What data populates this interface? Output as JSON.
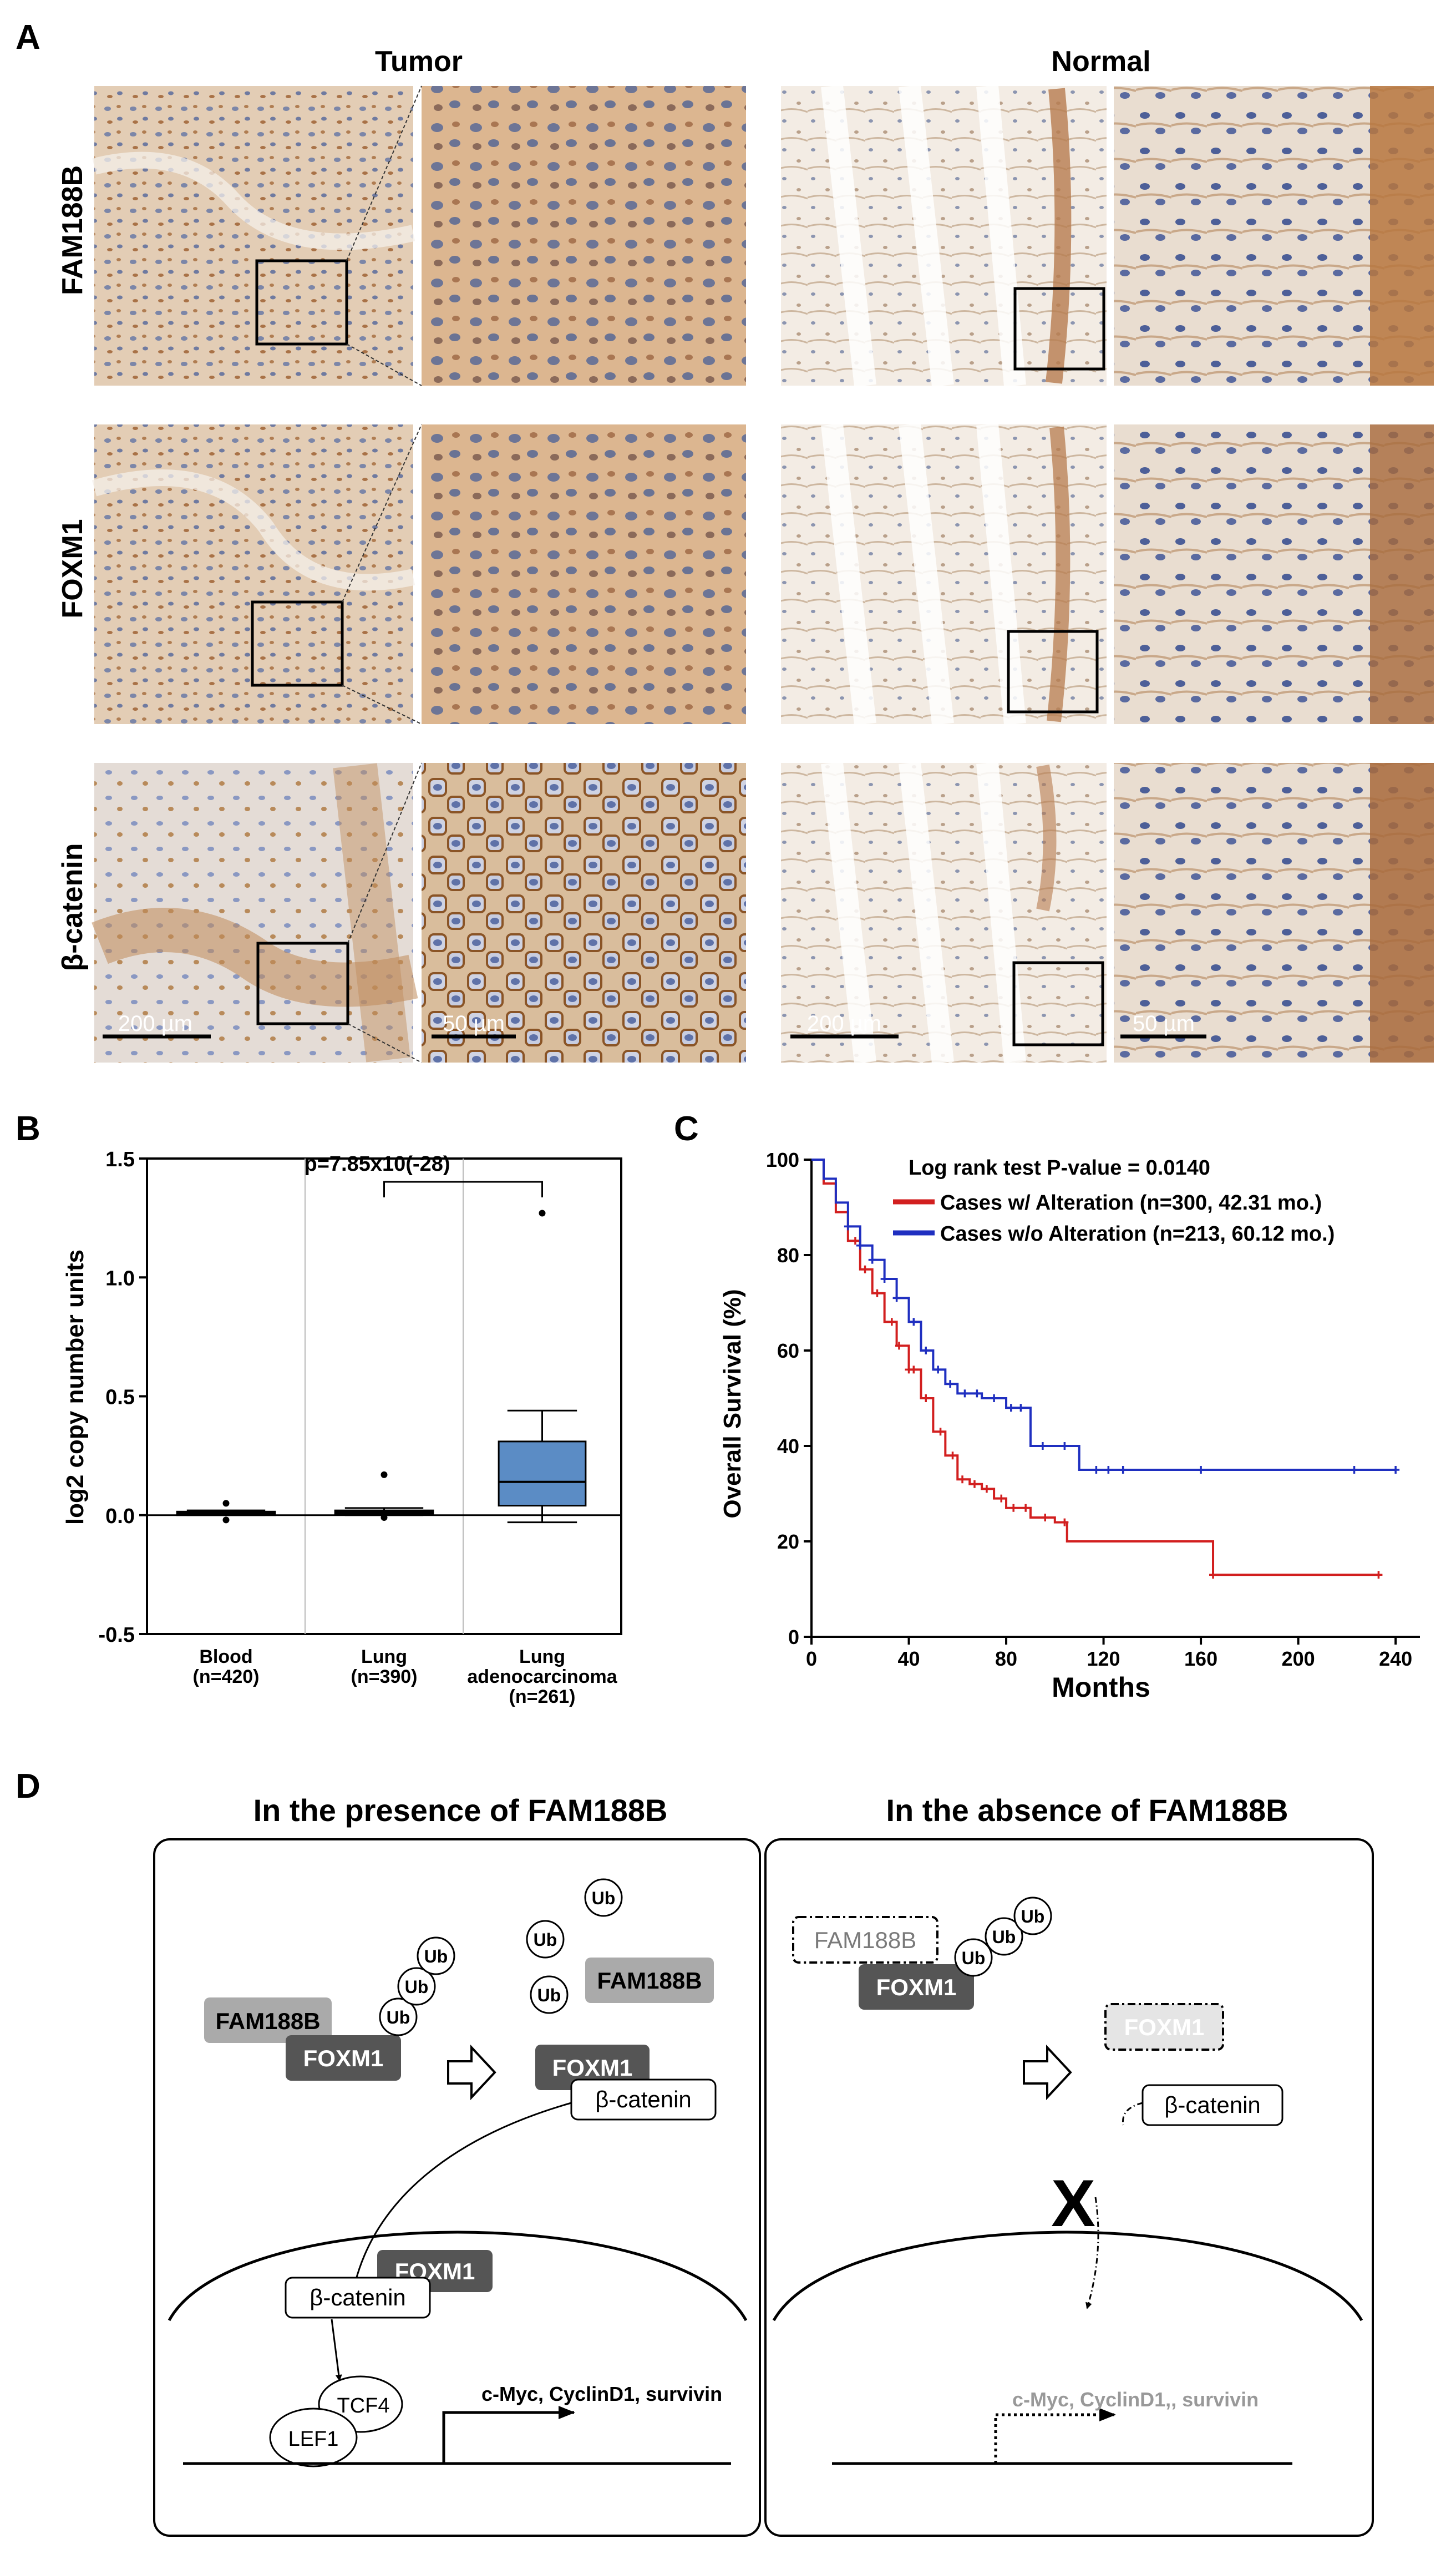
{
  "panel_a": {
    "letter": "A",
    "col_tumor": "Tumor",
    "col_normal": "Normal",
    "rows": [
      "FAM188B",
      "FOXM1",
      "β-catenin"
    ],
    "scale_low": "200 µm",
    "scale_high": "50 µm",
    "stain_brown": "#a86a3c",
    "stain_blue": "#5a6fa0"
  },
  "panel_b": {
    "letter": "B",
    "pvalue": "p=7.85x10(-28)"
  },
  "panel_c": {
    "letter": "C",
    "logrank": "Log rank test P-value = 0.0140",
    "legend_red": "Cases w/   Alteration (n=300, 42.31 mo.)",
    "legend_blue": "Cases w/o Alteration (n=213, 60.12 mo.)",
    "red": "#d21f1f",
    "blue": "#1f2fc0"
  },
  "chart_data": [
    {
      "type": "box",
      "ylabel": "log2 copy number units",
      "xlabel": "",
      "ylim": [
        -0.5,
        1.5
      ],
      "yticks": [
        "-0.5",
        "0.0",
        "0.5",
        "1.0",
        "1.5"
      ],
      "categories": [
        "Blood",
        "Lung",
        "Lung adenocarcinoma"
      ],
      "category_lines": [
        [
          "Blood",
          "(n=420)"
        ],
        [
          "Lung",
          "(n=390)"
        ],
        [
          "Lung",
          "adenocarcinoma",
          "(n=261)"
        ]
      ],
      "boxes": [
        {
          "name": "Blood",
          "whisker_low": 0.0,
          "q1": 0.0,
          "median": 0.01,
          "q3": 0.015,
          "whisker_high": 0.02,
          "outliers": [
            0.05,
            -0.02
          ]
        },
        {
          "name": "Lung",
          "whisker_low": 0.0,
          "q1": 0.005,
          "median": 0.01,
          "q3": 0.02,
          "whisker_high": 0.03,
          "outliers": [
            0.17,
            -0.01
          ]
        },
        {
          "name": "Lung adenocarcinoma",
          "whisker_low": -0.03,
          "q1": 0.04,
          "median": 0.14,
          "q3": 0.31,
          "whisker_high": 0.44,
          "outliers": [
            1.27
          ]
        }
      ],
      "box_color": "#5b8cc5"
    },
    {
      "type": "line",
      "title": "",
      "xlabel": "Months",
      "ylabel": "Overall Survival (%)",
      "xlim": [
        0,
        250
      ],
      "ylim": [
        0,
        100
      ],
      "xticks": [
        "0",
        "40",
        "80",
        "120",
        "160",
        "200",
        "240"
      ],
      "yticks": [
        "0",
        "20",
        "40",
        "60",
        "80",
        "100"
      ],
      "series": [
        {
          "name": "Cases w/ Alteration",
          "color": "#d21f1f",
          "x": [
            0,
            5,
            10,
            15,
            20,
            25,
            30,
            35,
            40,
            45,
            50,
            55,
            60,
            65,
            70,
            75,
            80,
            90,
            100,
            105,
            120,
            140,
            160,
            165,
            200,
            233
          ],
          "y": [
            100,
            95,
            89,
            83,
            77,
            72,
            66,
            61,
            56,
            50,
            43,
            38,
            33,
            32,
            31,
            29,
            27,
            25,
            24,
            20,
            20,
            20,
            20,
            13,
            13,
            13
          ],
          "censor": [
            18,
            22,
            27,
            33,
            36,
            40,
            42,
            47,
            53,
            58,
            62,
            67,
            72,
            78,
            83,
            88,
            96,
            104,
            165,
            233
          ]
        },
        {
          "name": "Cases w/o Alteration",
          "color": "#1f2fc0",
          "x": [
            0,
            5,
            10,
            15,
            20,
            25,
            30,
            35,
            40,
            45,
            50,
            55,
            60,
            70,
            80,
            90,
            100,
            110,
            150,
            200,
            240
          ],
          "y": [
            100,
            96,
            91,
            86,
            82,
            79,
            75,
            71,
            66,
            60,
            56,
            53,
            51,
            50,
            48,
            40,
            40,
            35,
            35,
            35,
            35
          ],
          "censor": [
            15,
            20,
            25,
            30,
            35,
            42,
            47,
            52,
            57,
            63,
            68,
            75,
            82,
            86,
            95,
            104,
            117,
            122,
            128,
            160,
            223,
            240
          ]
        }
      ]
    }
  ],
  "panel_d": {
    "letter": "D",
    "title_left": "In the presence of FAM188B",
    "title_right": "In the absence of FAM188B",
    "fam188b": "FAM188B",
    "foxm1": "FOXM1",
    "bcat": "β-catenin",
    "ub": "Ub",
    "tcf4": "TCF4",
    "lef1": "LEF1",
    "targets": "c-Myc, CyclinD1, survivin",
    "targets_faded": "c-Myc, CyclinD1,, survivin",
    "block_mark": "X",
    "dark_gray": "#555555",
    "light_gray": "#aaaaaa"
  }
}
